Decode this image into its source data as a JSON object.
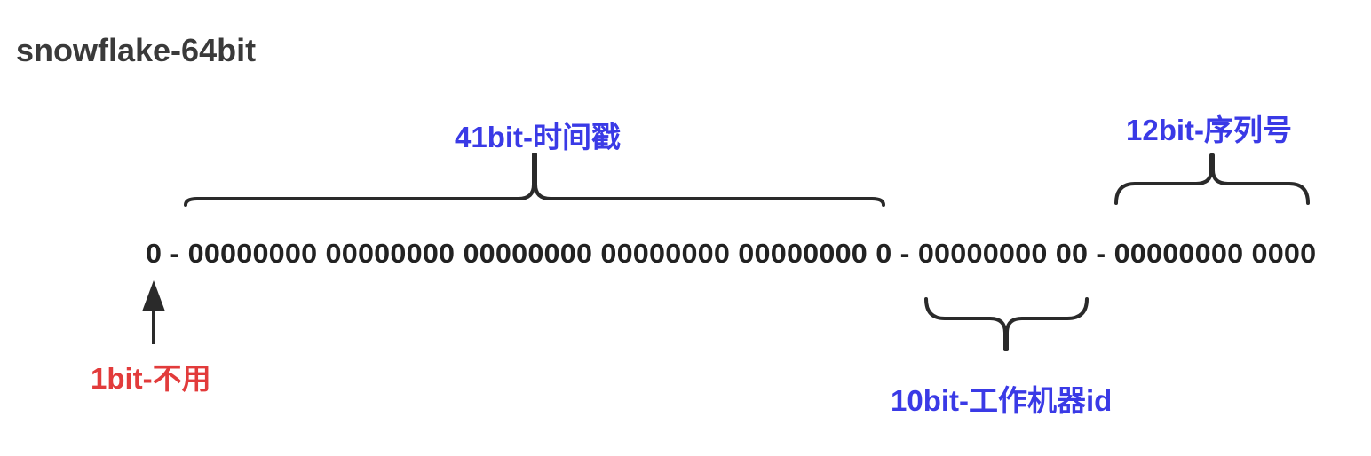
{
  "title": "snowflake-64bit",
  "bit_string": "0 - 00000000 00000000 00000000 00000000 00000000 0 - 00000000 00 - 00000000 0000",
  "segments": {
    "timestamp": {
      "label": "41bit-时间戳"
    },
    "sequence": {
      "label": "12bit-序列号"
    },
    "worker": {
      "label": "10bit-工作机器id"
    },
    "unused": {
      "label": "1bit-不用"
    }
  },
  "colors": {
    "segment_label": "#3a3ae6",
    "unused_label": "#e23b3b",
    "text": "#222222",
    "title": "#3a3a3a"
  },
  "icons": [
    "curly-brace-icon",
    "up-arrow-icon"
  ]
}
